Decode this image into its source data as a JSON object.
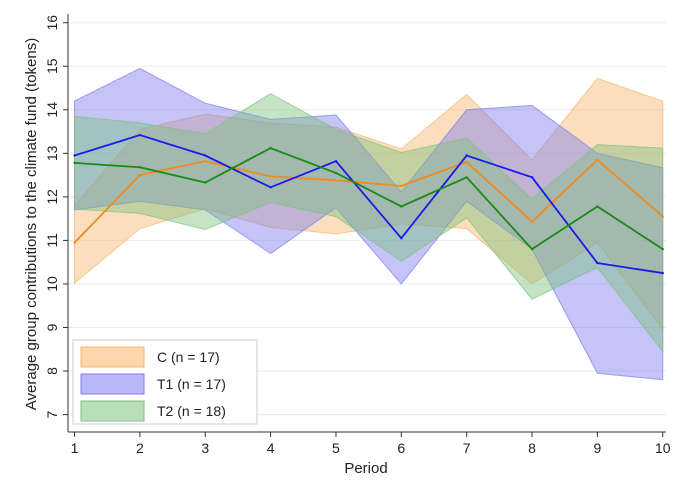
{
  "chart_data": {
    "type": "line",
    "title": "",
    "xlabel": "Period",
    "ylabel": "Average group contributions to the climate fund (tokens)",
    "x": [
      1,
      2,
      3,
      4,
      5,
      6,
      7,
      8,
      9,
      10
    ],
    "xlim": [
      0.9,
      10.05
    ],
    "ylim": [
      6.6,
      16.2
    ],
    "yticks": [
      7,
      8,
      9,
      10,
      11,
      12,
      13,
      14,
      15,
      16
    ],
    "grid": "horizontal",
    "legend_position": "bottom-left",
    "series": [
      {
        "name": "C (n = 17)",
        "color": "#f28a1e",
        "band_color": "#f7b56e",
        "mean": [
          10.95,
          12.5,
          12.82,
          12.47,
          12.38,
          12.25,
          12.8,
          11.43,
          12.85,
          11.55
        ],
        "upper": [
          11.8,
          13.55,
          13.9,
          13.7,
          13.6,
          13.1,
          14.35,
          12.85,
          14.72,
          14.2
        ],
        "lower": [
          10.02,
          11.27,
          11.73,
          11.3,
          11.15,
          11.38,
          11.27,
          10.0,
          10.95,
          8.95
        ]
      },
      {
        "name": "T1 (n = 17)",
        "color": "#1a1aee",
        "band_color": "#7d7dee",
        "mean": [
          12.95,
          13.42,
          12.95,
          12.22,
          12.82,
          11.05,
          12.95,
          12.45,
          10.48,
          10.25
        ],
        "upper": [
          14.2,
          14.95,
          14.15,
          13.78,
          13.88,
          12.12,
          14.0,
          14.1,
          13.0,
          12.67
        ],
        "lower": [
          11.7,
          11.9,
          11.7,
          10.7,
          11.75,
          10.0,
          11.9,
          10.8,
          7.95,
          7.8
        ]
      },
      {
        "name": "T2 (n = 18)",
        "color": "#188a18",
        "band_color": "#7fc27f",
        "mean": [
          12.78,
          12.68,
          12.33,
          13.12,
          12.55,
          11.78,
          12.45,
          10.8,
          11.78,
          10.8
        ],
        "upper": [
          13.85,
          13.7,
          13.45,
          14.37,
          13.55,
          13.02,
          13.35,
          11.95,
          13.2,
          13.12
        ],
        "lower": [
          11.72,
          11.62,
          11.25,
          11.87,
          11.55,
          10.52,
          11.52,
          9.65,
          10.38,
          8.45
        ]
      }
    ]
  }
}
